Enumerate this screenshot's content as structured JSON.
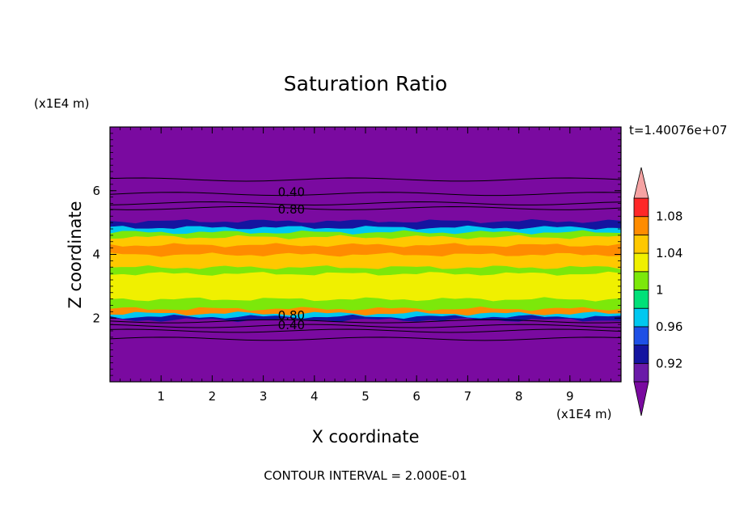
{
  "chart_data": {
    "type": "heatmap",
    "title": "Saturation Ratio",
    "xlabel": "X coordinate",
    "ylabel": "Z coordinate",
    "x_unit": "(x1E4 m)",
    "y_unit": "(x1E4 m)",
    "time_label": "t=1.40076e+07",
    "footer": "CONTOUR INTERVAL = 2.000E-01",
    "xlim": [
      0,
      10
    ],
    "ylim": [
      0,
      8
    ],
    "x_ticks": [
      1,
      2,
      3,
      4,
      5,
      6,
      7,
      8,
      9
    ],
    "y_ticks": [
      2,
      4,
      6
    ],
    "contour_labels": [
      "0.40",
      "0.80",
      "0.80",
      "0.40"
    ],
    "colorbar": {
      "levels": [
        0.9,
        0.92,
        0.94,
        0.96,
        0.98,
        1.0,
        1.02,
        1.04,
        1.06,
        1.08,
        1.1
      ],
      "tick_labels": [
        "0.92",
        "0.96",
        "1",
        "1.04",
        "1.08"
      ],
      "colors": [
        "#6a1aa8",
        "#1414a0",
        "#1e50e6",
        "#00c8f0",
        "#00e078",
        "#7ce80a",
        "#f0f000",
        "#ffc800",
        "#ff8c00",
        "#ff2828"
      ],
      "under_color": "#7a0aa0",
      "over_color": "#f5a3a3"
    },
    "bands": [
      {
        "z_min": 0.0,
        "z_max": 1.95,
        "value": 0.5,
        "color": "#7a0aa0"
      },
      {
        "z_min": 1.95,
        "z_max": 2.05,
        "value": 0.93,
        "color": "#1414a0"
      },
      {
        "z_min": 2.05,
        "z_max": 2.15,
        "value": 0.97,
        "color": "#00c8f0"
      },
      {
        "z_min": 2.15,
        "z_max": 2.3,
        "value": 1.07,
        "color": "#ff8c00"
      },
      {
        "z_min": 2.3,
        "z_max": 2.6,
        "value": 1.0,
        "color": "#7ce80a"
      },
      {
        "z_min": 2.6,
        "z_max": 3.4,
        "value": 1.03,
        "color": "#f0f000"
      },
      {
        "z_min": 3.4,
        "z_max": 3.6,
        "value": 1.01,
        "color": "#7ce80a"
      },
      {
        "z_min": 3.6,
        "z_max": 4.0,
        "value": 1.045,
        "color": "#ffc800"
      },
      {
        "z_min": 4.0,
        "z_max": 4.3,
        "value": 1.075,
        "color": "#ff8c00"
      },
      {
        "z_min": 4.3,
        "z_max": 4.55,
        "value": 1.05,
        "color": "#ffc800"
      },
      {
        "z_min": 4.55,
        "z_max": 4.7,
        "value": 1.01,
        "color": "#7ce80a"
      },
      {
        "z_min": 4.7,
        "z_max": 4.85,
        "value": 0.97,
        "color": "#00c8f0"
      },
      {
        "z_min": 4.85,
        "z_max": 5.05,
        "value": 0.93,
        "color": "#1414a0"
      },
      {
        "z_min": 5.05,
        "z_max": 8.0,
        "value": 0.5,
        "color": "#7a0aa0"
      }
    ],
    "contour_lines_z": [
      1.35,
      1.6,
      1.75,
      1.9,
      5.45,
      5.6,
      5.9,
      6.35
    ]
  }
}
